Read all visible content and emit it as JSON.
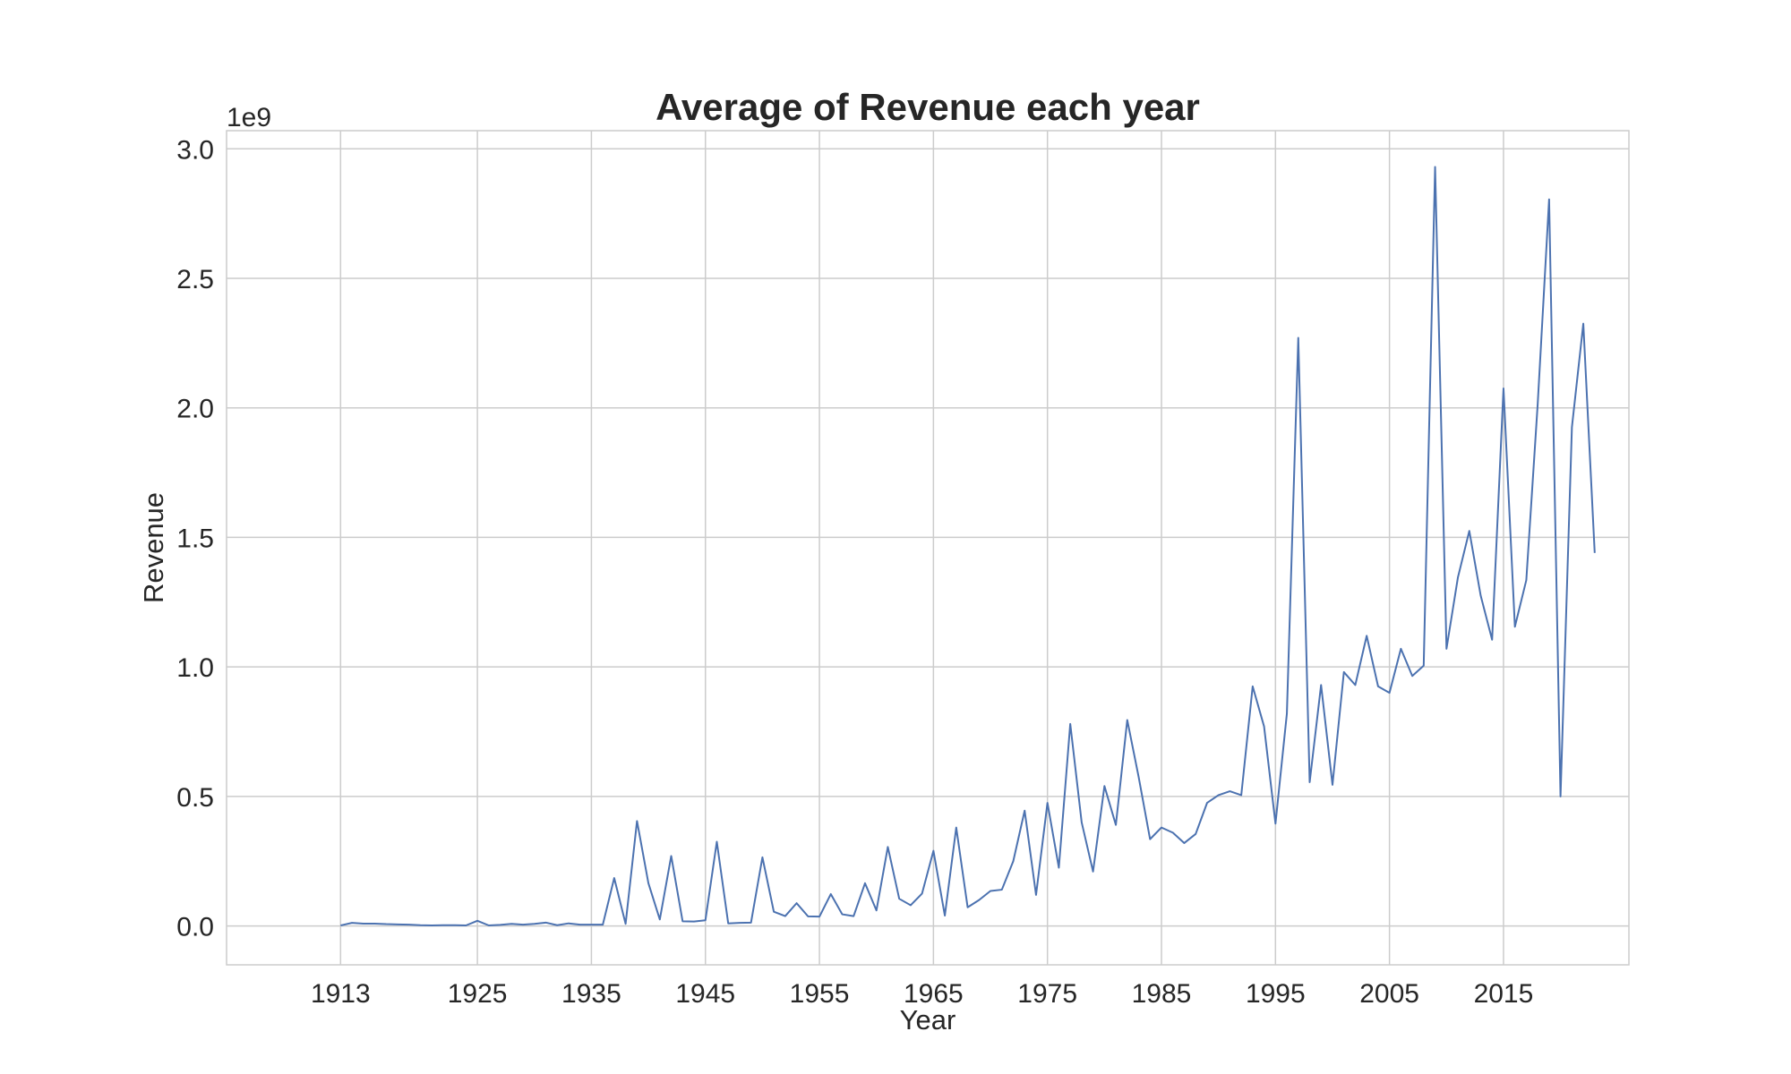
{
  "chart_data": {
    "type": "line",
    "title": "Average of Revenue each year",
    "xlabel": "Year",
    "ylabel": "Revenue",
    "y_offset_label": "1e9",
    "xlim": [
      1903,
      2026
    ],
    "ylim": [
      -0.15,
      3.07
    ],
    "x_ticks": [
      1913,
      1925,
      1935,
      1945,
      1955,
      1965,
      1975,
      1985,
      1995,
      2005,
      2015
    ],
    "y_ticks": [
      0.0,
      0.5,
      1.0,
      1.5,
      2.0,
      2.5,
      3.0
    ],
    "y_tick_labels": [
      "0.0",
      "0.5",
      "1.0",
      "1.5",
      "2.0",
      "2.5",
      "3.0"
    ],
    "grid": true,
    "series": [
      {
        "color": "#4c72b0",
        "x": [
          1913,
          1914,
          1915,
          1916,
          1917,
          1918,
          1919,
          1920,
          1921,
          1922,
          1923,
          1924,
          1925,
          1926,
          1927,
          1928,
          1929,
          1930,
          1931,
          1932,
          1933,
          1934,
          1935,
          1936,
          1937,
          1938,
          1939,
          1940,
          1941,
          1942,
          1943,
          1944,
          1945,
          1946,
          1947,
          1948,
          1949,
          1950,
          1951,
          1952,
          1953,
          1954,
          1955,
          1956,
          1957,
          1958,
          1959,
          1960,
          1961,
          1962,
          1963,
          1964,
          1965,
          1966,
          1967,
          1968,
          1969,
          1970,
          1971,
          1972,
          1973,
          1974,
          1975,
          1976,
          1977,
          1978,
          1979,
          1980,
          1981,
          1982,
          1983,
          1984,
          1985,
          1986,
          1987,
          1988,
          1989,
          1990,
          1991,
          1992,
          1993,
          1994,
          1995,
          1996,
          1997,
          1998,
          1999,
          2000,
          2001,
          2002,
          2003,
          2004,
          2005,
          2006,
          2007,
          2008,
          2009,
          2010,
          2011,
          2012,
          2013,
          2014,
          2015,
          2016,
          2017,
          2018,
          2019,
          2020,
          2021,
          2022,
          2023
        ],
        "y": [
          0.002,
          0.012,
          0.009,
          0.009,
          0.007,
          0.006,
          0.005,
          0.003,
          0.002,
          0.003,
          0.003,
          0.002,
          0.02,
          0.002,
          0.004,
          0.008,
          0.005,
          0.008,
          0.013,
          0.003,
          0.01,
          0.005,
          0.005,
          0.005,
          0.185,
          0.008,
          0.405,
          0.165,
          0.025,
          0.27,
          0.018,
          0.017,
          0.022,
          0.325,
          0.01,
          0.012,
          0.013,
          0.265,
          0.055,
          0.038,
          0.088,
          0.037,
          0.036,
          0.123,
          0.045,
          0.038,
          0.165,
          0.06,
          0.305,
          0.105,
          0.08,
          0.125,
          0.29,
          0.04,
          0.38,
          0.072,
          0.1,
          0.135,
          0.14,
          0.25,
          0.445,
          0.12,
          0.475,
          0.225,
          0.78,
          0.4,
          0.21,
          0.54,
          0.39,
          0.795,
          0.575,
          0.335,
          0.38,
          0.36,
          0.32,
          0.355,
          0.475,
          0.505,
          0.52,
          0.505,
          0.925,
          0.77,
          0.395,
          0.82,
          2.27,
          0.555,
          0.93,
          0.545,
          0.98,
          0.93,
          1.12,
          0.925,
          0.9,
          1.07,
          0.965,
          1.005,
          2.93,
          1.07,
          1.345,
          1.525,
          1.275,
          1.105,
          2.075,
          1.155,
          1.335,
          2.015,
          2.805,
          0.5,
          1.925,
          2.325,
          1.44
        ]
      }
    ]
  }
}
